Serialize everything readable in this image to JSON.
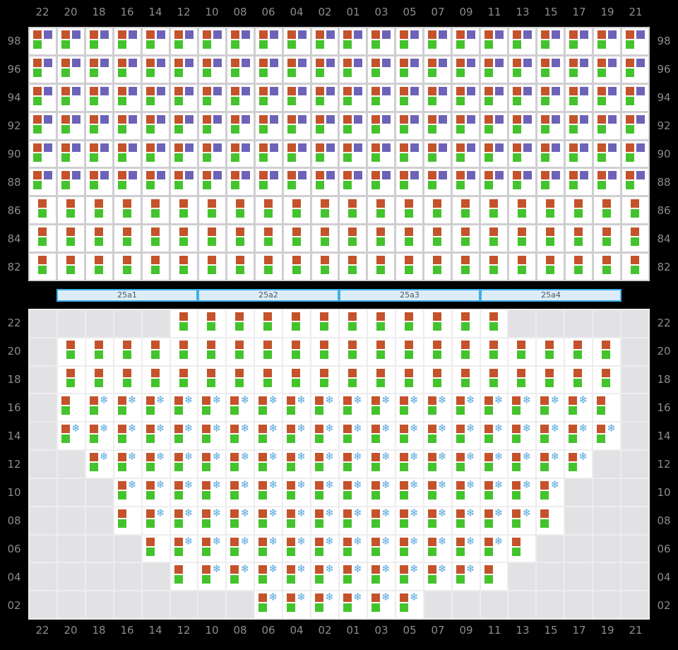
{
  "colors": {
    "page_bg": "#000000",
    "seat_occupied": "#c4522a",
    "seat_free": "#43c32c",
    "seat_special": "#6c63b8",
    "snowflake": "#5aa8dd",
    "label_text": "#8b8b92",
    "bar_fill": "#dcecf8",
    "bar_border": "#3eafe9",
    "bar_text": "#54585c",
    "empty_cell": "#e2e2e4",
    "seat_cell": "#ffffff"
  },
  "icons": {
    "snowflake_glyph": "❄"
  },
  "legend": {
    "P": "occupied+special+free seat markers",
    "C": "occupied+free seat markers centered",
    "L": "occupied+free seat markers left-aligned",
    "S": "occupied+snowflake+free seat markers",
    ".": "empty grid square"
  },
  "columns": [
    "22",
    "20",
    "18",
    "16",
    "14",
    "12",
    "10",
    "08",
    "06",
    "04",
    "02",
    "01",
    "03",
    "05",
    "07",
    "09",
    "11",
    "13",
    "15",
    "17",
    "19",
    "21"
  ],
  "stage_bars": [
    {
      "label": "25a1"
    },
    {
      "label": "25a2"
    },
    {
      "label": "25a3"
    },
    {
      "label": "25a4"
    }
  ],
  "top_grid": {
    "rows": [
      {
        "label": "98",
        "cells": [
          "P",
          "P",
          "P",
          "P",
          "P",
          "P",
          "P",
          "P",
          "P",
          "P",
          "P",
          "P",
          "P",
          "P",
          "P",
          "P",
          "P",
          "P",
          "P",
          "P",
          "P",
          "P"
        ]
      },
      {
        "label": "96",
        "cells": [
          "P",
          "P",
          "P",
          "P",
          "P",
          "P",
          "P",
          "P",
          "P",
          "P",
          "P",
          "P",
          "P",
          "P",
          "P",
          "P",
          "P",
          "P",
          "P",
          "P",
          "P",
          "P"
        ]
      },
      {
        "label": "94",
        "cells": [
          "P",
          "P",
          "P",
          "P",
          "P",
          "P",
          "P",
          "P",
          "P",
          "P",
          "P",
          "P",
          "P",
          "P",
          "P",
          "P",
          "P",
          "P",
          "P",
          "P",
          "P",
          "P"
        ]
      },
      {
        "label": "92",
        "cells": [
          "P",
          "P",
          "P",
          "P",
          "P",
          "P",
          "P",
          "P",
          "P",
          "P",
          "P",
          "P",
          "P",
          "P",
          "P",
          "P",
          "P",
          "P",
          "P",
          "P",
          "P",
          "P"
        ]
      },
      {
        "label": "90",
        "cells": [
          "P",
          "P",
          "P",
          "P",
          "P",
          "P",
          "P",
          "P",
          "P",
          "P",
          "P",
          "P",
          "P",
          "P",
          "P",
          "P",
          "P",
          "P",
          "P",
          "P",
          "P",
          "P"
        ]
      },
      {
        "label": "88",
        "cells": [
          "P",
          "P",
          "P",
          "P",
          "P",
          "P",
          "P",
          "P",
          "P",
          "P",
          "P",
          "P",
          "P",
          "P",
          "P",
          "P",
          "P",
          "P",
          "P",
          "P",
          "P",
          "P"
        ]
      },
      {
        "label": "86",
        "cells": [
          "C",
          "C",
          "C",
          "C",
          "C",
          "C",
          "C",
          "C",
          "C",
          "C",
          "C",
          "C",
          "C",
          "C",
          "C",
          "C",
          "C",
          "C",
          "C",
          "C",
          "C",
          "C"
        ]
      },
      {
        "label": "84",
        "cells": [
          "C",
          "C",
          "C",
          "C",
          "C",
          "C",
          "C",
          "C",
          "C",
          "C",
          "C",
          "C",
          "C",
          "C",
          "C",
          "C",
          "C",
          "C",
          "C",
          "C",
          "C",
          "C"
        ]
      },
      {
        "label": "82",
        "cells": [
          "C",
          "C",
          "C",
          "C",
          "C",
          "C",
          "C",
          "C",
          "C",
          "C",
          "C",
          "C",
          "C",
          "C",
          "C",
          "C",
          "C",
          "C",
          "C",
          "C",
          "C",
          "C"
        ]
      }
    ]
  },
  "bottom_grid": {
    "rows": [
      {
        "label": "22",
        "cells": [
          ".",
          ".",
          ".",
          ".",
          ".",
          "C",
          "C",
          "C",
          "C",
          "C",
          "C",
          "C",
          "C",
          "C",
          "C",
          "C",
          "C",
          ".",
          ".",
          ".",
          ".",
          "."
        ]
      },
      {
        "label": "20",
        "cells": [
          ".",
          "C",
          "C",
          "C",
          "C",
          "C",
          "C",
          "C",
          "C",
          "C",
          "C",
          "C",
          "C",
          "C",
          "C",
          "C",
          "C",
          "C",
          "C",
          "C",
          "C",
          "."
        ]
      },
      {
        "label": "18",
        "cells": [
          ".",
          "C",
          "C",
          "C",
          "C",
          "C",
          "C",
          "C",
          "C",
          "C",
          "C",
          "C",
          "C",
          "C",
          "C",
          "C",
          "C",
          "C",
          "C",
          "C",
          "C",
          "."
        ]
      },
      {
        "label": "16",
        "cells": [
          ".",
          "L",
          "S",
          "S",
          "S",
          "S",
          "S",
          "S",
          "S",
          "S",
          "S",
          "S",
          "S",
          "S",
          "S",
          "S",
          "S",
          "S",
          "S",
          "S",
          "L",
          "."
        ]
      },
      {
        "label": "14",
        "cells": [
          ".",
          "S",
          "S",
          "S",
          "S",
          "S",
          "S",
          "S",
          "S",
          "S",
          "S",
          "S",
          "S",
          "S",
          "S",
          "S",
          "S",
          "S",
          "S",
          "S",
          "S",
          "."
        ]
      },
      {
        "label": "12",
        "cells": [
          ".",
          ".",
          "S",
          "S",
          "S",
          "S",
          "S",
          "S",
          "S",
          "S",
          "S",
          "S",
          "S",
          "S",
          "S",
          "S",
          "S",
          "S",
          "S",
          "S",
          ".",
          "."
        ]
      },
      {
        "label": "10",
        "cells": [
          ".",
          ".",
          ".",
          "S",
          "S",
          "S",
          "S",
          "S",
          "S",
          "S",
          "S",
          "S",
          "S",
          "S",
          "S",
          "S",
          "S",
          "S",
          "S",
          ".",
          ".",
          "."
        ]
      },
      {
        "label": "08",
        "cells": [
          ".",
          ".",
          ".",
          "L",
          "S",
          "S",
          "S",
          "S",
          "S",
          "S",
          "S",
          "S",
          "S",
          "S",
          "S",
          "S",
          "S",
          "S",
          "L",
          ".",
          ".",
          "."
        ]
      },
      {
        "label": "06",
        "cells": [
          ".",
          ".",
          ".",
          ".",
          "L",
          "S",
          "S",
          "S",
          "S",
          "S",
          "S",
          "S",
          "S",
          "S",
          "S",
          "S",
          "S",
          "L",
          ".",
          ".",
          ".",
          "."
        ]
      },
      {
        "label": "04",
        "cells": [
          ".",
          ".",
          ".",
          ".",
          ".",
          "L",
          "S",
          "S",
          "S",
          "S",
          "S",
          "S",
          "S",
          "S",
          "S",
          "S",
          "L",
          ".",
          ".",
          ".",
          ".",
          "."
        ]
      },
      {
        "label": "02",
        "cells": [
          ".",
          ".",
          ".",
          ".",
          ".",
          ".",
          ".",
          ".",
          "S",
          "S",
          "S",
          "S",
          "S",
          "S",
          ".",
          ".",
          ".",
          ".",
          ".",
          ".",
          ".",
          "."
        ]
      }
    ]
  }
}
